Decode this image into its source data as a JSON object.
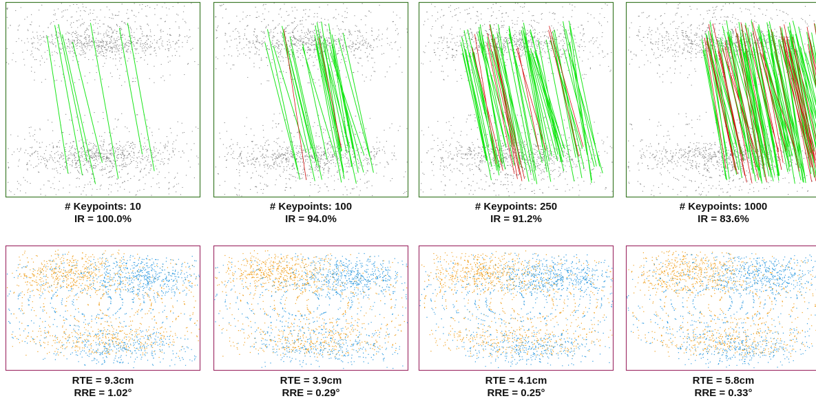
{
  "top_row": [
    {
      "keypoints": "# Keypoints: 10",
      "ir": "IR = 100.0%"
    },
    {
      "keypoints": "# Keypoints: 100",
      "ir": "IR = 94.0%"
    },
    {
      "keypoints": "# Keypoints: 250",
      "ir": "IR = 91.2%"
    },
    {
      "keypoints": "# Keypoints: 1000",
      "ir": "IR = 83.6%"
    }
  ],
  "bottom_row": [
    {
      "rte": "RTE = 9.3cm",
      "rre": "RRE = 1.02°"
    },
    {
      "rte": "RTE = 3.9cm",
      "rre": "RRE = 0.29°"
    },
    {
      "rte": "RTE = 4.1cm",
      "rre": "RRE = 0.25°"
    },
    {
      "rte": "RTE = 5.8cm",
      "rre": "RRE = 0.33°"
    }
  ]
}
